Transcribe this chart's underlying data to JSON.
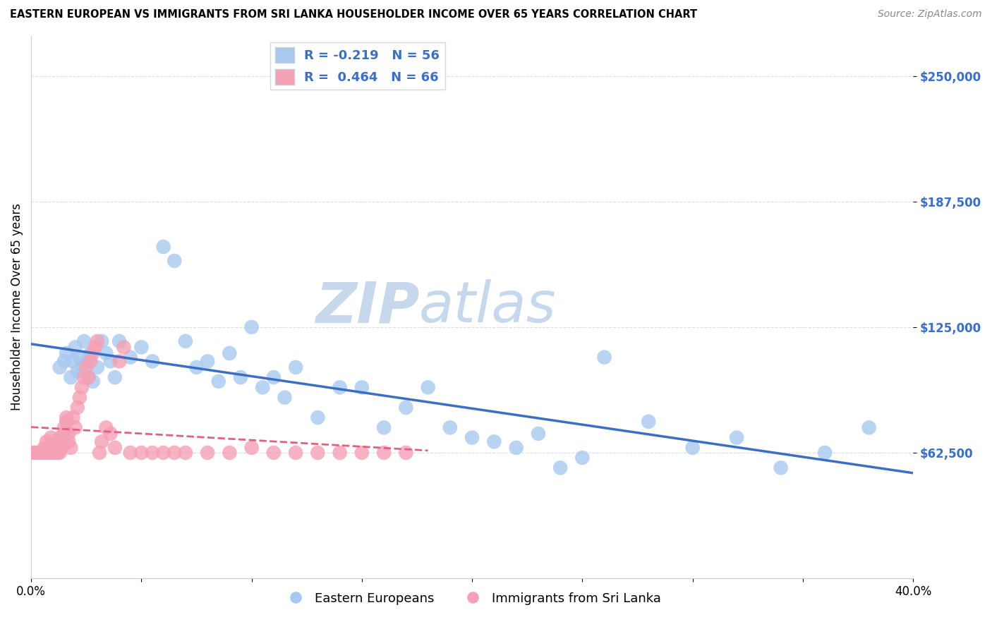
{
  "title": "EASTERN EUROPEAN VS IMMIGRANTS FROM SRI LANKA HOUSEHOLDER INCOME OVER 65 YEARS CORRELATION CHART",
  "source": "Source: ZipAtlas.com",
  "ylabel": "Householder Income Over 65 years",
  "xlim": [
    0.0,
    0.4
  ],
  "ylim": [
    0,
    270000
  ],
  "yticks": [
    62500,
    125000,
    187500,
    250000
  ],
  "ytick_labels": [
    "$62,500",
    "$125,000",
    "$187,500",
    "$250,000"
  ],
  "xticks": [
    0.0,
    0.05,
    0.1,
    0.15,
    0.2,
    0.25,
    0.3,
    0.35,
    0.4
  ],
  "xtick_labels": [
    "0.0%",
    "",
    "",
    "",
    "",
    "",
    "",
    "",
    "40.0%"
  ],
  "blue_R": -0.219,
  "blue_N": 56,
  "pink_R": 0.464,
  "pink_N": 66,
  "blue_color": "#A8C8F0",
  "pink_color": "#F4A0B5",
  "blue_line_color": "#3A6FC4",
  "pink_line_color": "#E06080",
  "watermark_zip": "ZIP",
  "watermark_atlas": "atlas",
  "watermark_color": "#C8D8EC",
  "legend_label_blue": "Eastern Europeans",
  "legend_label_pink": "Immigrants from Sri Lanka",
  "blue_x": [
    0.013,
    0.015,
    0.016,
    0.018,
    0.019,
    0.02,
    0.021,
    0.022,
    0.023,
    0.024,
    0.025,
    0.026,
    0.027,
    0.028,
    0.03,
    0.032,
    0.034,
    0.036,
    0.038,
    0.04,
    0.045,
    0.05,
    0.055,
    0.06,
    0.065,
    0.07,
    0.075,
    0.08,
    0.085,
    0.09,
    0.095,
    0.1,
    0.105,
    0.11,
    0.115,
    0.12,
    0.13,
    0.14,
    0.15,
    0.16,
    0.17,
    0.18,
    0.19,
    0.2,
    0.21,
    0.22,
    0.23,
    0.24,
    0.25,
    0.26,
    0.28,
    0.3,
    0.32,
    0.34,
    0.36,
    0.38
  ],
  "blue_y": [
    105000,
    108000,
    112000,
    100000,
    108000,
    115000,
    103000,
    110000,
    105000,
    118000,
    108000,
    100000,
    112000,
    98000,
    105000,
    118000,
    112000,
    108000,
    100000,
    118000,
    110000,
    115000,
    108000,
    165000,
    158000,
    118000,
    105000,
    108000,
    98000,
    112000,
    100000,
    125000,
    95000,
    100000,
    90000,
    105000,
    80000,
    95000,
    95000,
    75000,
    85000,
    95000,
    75000,
    70000,
    68000,
    65000,
    72000,
    55000,
    60000,
    110000,
    78000,
    65000,
    70000,
    55000,
    62500,
    75000
  ],
  "pink_x": [
    0.001,
    0.002,
    0.003,
    0.004,
    0.005,
    0.006,
    0.006,
    0.007,
    0.007,
    0.008,
    0.008,
    0.009,
    0.009,
    0.01,
    0.01,
    0.011,
    0.011,
    0.012,
    0.012,
    0.013,
    0.013,
    0.013,
    0.014,
    0.014,
    0.015,
    0.015,
    0.016,
    0.016,
    0.017,
    0.017,
    0.018,
    0.019,
    0.02,
    0.021,
    0.022,
    0.023,
    0.024,
    0.025,
    0.026,
    0.027,
    0.028,
    0.029,
    0.03,
    0.031,
    0.032,
    0.034,
    0.036,
    0.038,
    0.04,
    0.042,
    0.045,
    0.05,
    0.055,
    0.06,
    0.065,
    0.07,
    0.08,
    0.09,
    0.1,
    0.11,
    0.12,
    0.13,
    0.14,
    0.15,
    0.16,
    0.17
  ],
  "pink_y": [
    62500,
    62500,
    62500,
    62500,
    62500,
    62500,
    65000,
    62500,
    68000,
    62500,
    65000,
    62500,
    70000,
    62500,
    65000,
    62500,
    68000,
    62500,
    65000,
    65000,
    70000,
    62500,
    68000,
    65000,
    72000,
    75000,
    80000,
    78000,
    72000,
    68000,
    65000,
    80000,
    75000,
    85000,
    90000,
    95000,
    100000,
    105000,
    100000,
    108000,
    112000,
    115000,
    118000,
    62500,
    68000,
    75000,
    72000,
    65000,
    108000,
    115000,
    62500,
    62500,
    62500,
    62500,
    62500,
    62500,
    62500,
    62500,
    65000,
    62500,
    62500,
    62500,
    62500,
    62500,
    62500,
    62500
  ],
  "pink_line_x_start": 0.0,
  "pink_line_x_end": 0.18,
  "blue_line_x_start": 0.0,
  "blue_line_x_end": 0.4
}
